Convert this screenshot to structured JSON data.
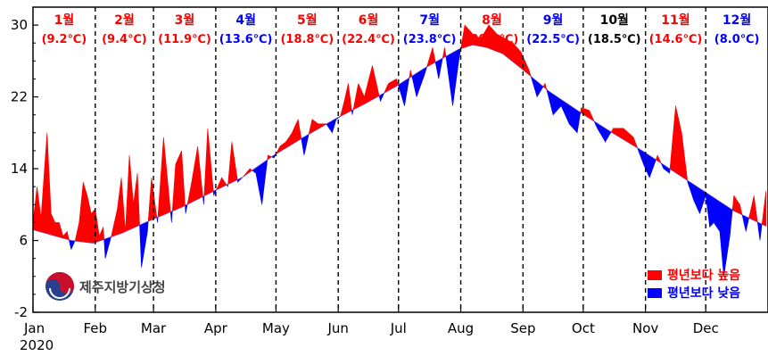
{
  "chart_data": {
    "type": "area",
    "year_label": "2020",
    "ylim": [
      -2,
      32
    ],
    "yticks": [
      -2,
      6,
      14,
      22,
      30
    ],
    "xticks": [
      "Jan",
      "Feb",
      "Mar",
      "Apr",
      "May",
      "Jun",
      "Jul",
      "Aug",
      "Sep",
      "Oct",
      "Nov",
      "Dec"
    ],
    "month_labels": [
      {
        "name": "1월",
        "temp": "(9.2℃)",
        "color": "#ff0000"
      },
      {
        "name": "2월",
        "temp": "(9.4℃)",
        "color": "#ff0000"
      },
      {
        "name": "3월",
        "temp": "(11.9℃)",
        "color": "#ff0000"
      },
      {
        "name": "4월",
        "temp": "(13.6℃)",
        "color": "#0000ff"
      },
      {
        "name": "5월",
        "temp": "(18.8℃)",
        "color": "#ff0000"
      },
      {
        "name": "6월",
        "temp": "(22.4℃)",
        "color": "#ff0000"
      },
      {
        "name": "7월",
        "temp": "(23.8℃)",
        "color": "#0000ff"
      },
      {
        "name": "8월",
        "temp": "(29.4℃)",
        "color": "#ff0000"
      },
      {
        "name": "9월",
        "temp": "(22.5℃)",
        "color": "#0000ff"
      },
      {
        "name": "10월",
        "temp": "(18.5℃)",
        "color": "#000000"
      },
      {
        "name": "11월",
        "temp": "(14.6℃)",
        "color": "#ff0000"
      },
      {
        "name": "12월",
        "temp": "(8.0℃)",
        "color": "#0000ff"
      }
    ],
    "series": [
      {
        "name": "normal",
        "x": [
          1,
          20,
          31,
          45,
          60,
          75,
          91,
          105,
          121,
          135,
          152,
          166,
          182,
          196,
          213,
          220,
          227,
          235,
          244,
          258,
          274,
          288,
          305,
          320,
          335,
          350,
          366
        ],
        "values": [
          7.2,
          6.0,
          5.7,
          6.8,
          8.3,
          9.7,
          11.5,
          13.0,
          15.5,
          17.4,
          19.6,
          21.2,
          23.2,
          25.2,
          27.3,
          27.8,
          27.5,
          26.8,
          25.2,
          22.6,
          20.2,
          18.2,
          15.9,
          13.7,
          11.5,
          9.3,
          7.6
        ]
      },
      {
        "name": "observed",
        "x": [
          1,
          3,
          5,
          8,
          10,
          12,
          14,
          16,
          18,
          20,
          22,
          24,
          26,
          28,
          30,
          32,
          34,
          36,
          37,
          40,
          43,
          45,
          47,
          49,
          51,
          53,
          55,
          58,
          60,
          63,
          66,
          70,
          72,
          75,
          77,
          80,
          83,
          86,
          88,
          91,
          95,
          98,
          100,
          103,
          106,
          109,
          112,
          115,
          118,
          121,
          124,
          127,
          130,
          133,
          136,
          140,
          143,
          147,
          150,
          152,
          154,
          156,
          158,
          160,
          163,
          166,
          170,
          174,
          178,
          182,
          186,
          189,
          192,
          196,
          200,
          203,
          206,
          210,
          213,
          216,
          220,
          224,
          228,
          232,
          236,
          240,
          244,
          248,
          252,
          256,
          260,
          264,
          268,
          272,
          274,
          278,
          282,
          286,
          290,
          295,
          300,
          305,
          308,
          312,
          315,
          318,
          321,
          324,
          327,
          330,
          333,
          336,
          338,
          340,
          343,
          345,
          348,
          350,
          353,
          356,
          360,
          363,
          366
        ],
        "values": [
          8.0,
          12.0,
          8.5,
          18.0,
          9.0,
          8.0,
          8.0,
          6.5,
          7.0,
          5.0,
          6.0,
          8.0,
          12.5,
          11.0,
          9.0,
          9.5,
          6.5,
          7.5,
          4.0,
          6.5,
          9.5,
          13.0,
          7.0,
          15.5,
          10.0,
          13.5,
          3.0,
          7.0,
          13.0,
          8.0,
          17.5,
          8.0,
          14.5,
          16.0,
          9.0,
          12.5,
          16.5,
          10.0,
          18.5,
          11.0,
          13.0,
          12.0,
          17.0,
          12.5,
          13.2,
          14.0,
          13.5,
          10.0,
          15.5,
          15.2,
          16.5,
          17.0,
          18.0,
          19.5,
          15.5,
          19.5,
          19.0,
          19.0,
          18.0,
          19.5,
          19.8,
          21.5,
          23.5,
          20.0,
          23.5,
          22.0,
          25.5,
          21.5,
          23.5,
          24.0,
          21.0,
          25.0,
          22.0,
          24.5,
          27.5,
          24.0,
          27.5,
          21.0,
          26.0,
          30.0,
          29.0,
          28.5,
          30.0,
          29.0,
          28.5,
          28.0,
          27.0,
          25.0,
          22.0,
          23.5,
          20.0,
          21.0,
          19.0,
          18.0,
          20.8,
          20.5,
          18.5,
          17.0,
          18.5,
          18.5,
          17.5,
          14.5,
          13.0,
          15.5,
          14.0,
          13.5,
          21.0,
          18.0,
          12.5,
          10.5,
          9.0,
          11.0,
          7.5,
          8.0,
          7.0,
          2.0,
          6.5,
          11.0,
          10.0,
          7.0,
          11.0,
          6.0,
          11.5
        ]
      }
    ],
    "legend": {
      "position": "bottom-right",
      "items": [
        {
          "label": "평년보다 높음",
          "color": "#ff0000"
        },
        {
          "label": "평년보다 낮음",
          "color": "#0000ff"
        }
      ]
    },
    "logo_text": "제주지방기상청"
  }
}
